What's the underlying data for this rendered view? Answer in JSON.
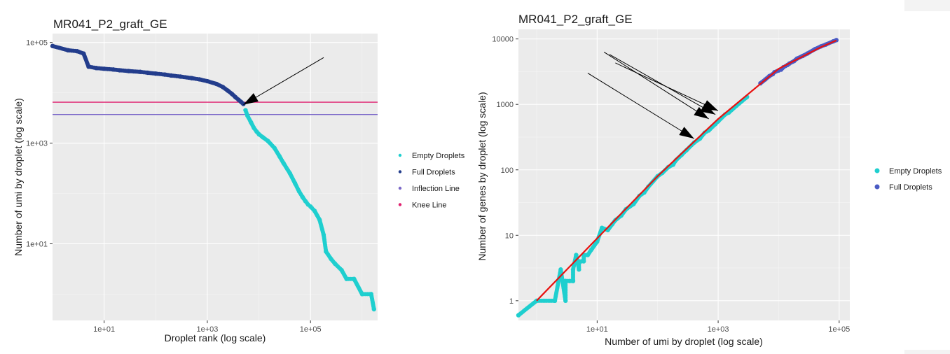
{
  "chart_data": [
    {
      "type": "scatter",
      "title": "MR041_P2_graft_GE",
      "xlabel": "Droplet rank (log scale)",
      "ylabel": "Number of umi by droplet (log scale)",
      "x_scale": "log10",
      "y_scale": "log10",
      "xlim": [
        1,
        2000000
      ],
      "ylim": [
        0.3,
        150000
      ],
      "x_ticks": [
        {
          "value": 10,
          "label": "1e+01"
        },
        {
          "value": 1000,
          "label": "1e+03"
        },
        {
          "value": 100000,
          "label": "1e+05"
        }
      ],
      "y_ticks": [
        {
          "value": 10,
          "label": "1e+01"
        },
        {
          "value": 1000,
          "label": "1e+03"
        },
        {
          "value": 100000,
          "label": "1e+05"
        }
      ],
      "grid": true,
      "legend_position": "right",
      "legend": [
        {
          "label": "Empty Droplets",
          "color": "#1fcfcf"
        },
        {
          "label": "Full Droplets",
          "color": "#233d8c"
        },
        {
          "label": "Inflection Line",
          "color": "#7b68c8"
        },
        {
          "label": "Knee Line",
          "color": "#e0206f"
        }
      ],
      "hlines": [
        {
          "name": "Knee Line",
          "y": 6500,
          "color": "#e0206f"
        },
        {
          "name": "Inflection Line",
          "y": 3700,
          "color": "#7b68c8"
        }
      ],
      "arrows": [
        {
          "from": [
            180000,
            50000
          ],
          "to": [
            5000,
            5800
          ]
        }
      ],
      "series": [
        {
          "name": "Full Droplets",
          "color": "#233d8c",
          "x": [
            1,
            2,
            3,
            4,
            5,
            7,
            10,
            15,
            20,
            30,
            50,
            70,
            100,
            150,
            200,
            300,
            500,
            700,
            1000,
            1500,
            2000,
            2500,
            3000,
            3500,
            4000,
            4500,
            5000
          ],
          "y": [
            85000,
            70000,
            67000,
            60000,
            33000,
            31000,
            30000,
            29000,
            28000,
            27000,
            26000,
            25000,
            24000,
            23000,
            22000,
            21000,
            19500,
            18500,
            17000,
            15000,
            13000,
            11000,
            9500,
            8200,
            7300,
            6600,
            6000
          ]
        },
        {
          "name": "Empty Droplets",
          "color": "#1fcfcf",
          "x": [
            5500,
            6000,
            7000,
            8000,
            9000,
            10000,
            12000,
            15000,
            20000,
            25000,
            30000,
            40000,
            50000,
            60000,
            70000,
            80000,
            90000,
            100000,
            120000,
            150000,
            180000,
            200000,
            250000,
            300000,
            400000,
            500000,
            700000,
            1000000,
            1500000,
            1700000
          ],
          "y": [
            4500,
            3500,
            2600,
            2000,
            1700,
            1500,
            1300,
            1100,
            800,
            550,
            400,
            250,
            160,
            110,
            85,
            70,
            60,
            55,
            45,
            30,
            15,
            7,
            5,
            4,
            3,
            2,
            2,
            1,
            1,
            0.5
          ]
        }
      ]
    },
    {
      "type": "scatter",
      "title": "MR041_P2_graft_GE",
      "xlabel": "Number of umi by droplet (log scale)",
      "ylabel": "Number of genes by droplet (log scale)",
      "x_scale": "log10",
      "y_scale": "log10",
      "xlim": [
        0.5,
        150000
      ],
      "ylim": [
        0.5,
        14000
      ],
      "x_ticks": [
        {
          "value": 10,
          "label": "1e+01"
        },
        {
          "value": 1000,
          "label": "1e+03"
        },
        {
          "value": 100000,
          "label": "1e+05"
        }
      ],
      "y_ticks": [
        {
          "value": 1,
          "label": "1"
        },
        {
          "value": 10,
          "label": "10"
        },
        {
          "value": 100,
          "label": "100"
        },
        {
          "value": 1000,
          "label": "1000"
        },
        {
          "value": 10000,
          "label": "10000"
        }
      ],
      "grid": true,
      "legend_position": "right",
      "legend": [
        {
          "label": "Empty Droplets",
          "color": "#1fcfcf"
        },
        {
          "label": "Full Droplets",
          "color": "#4a5bc4"
        }
      ],
      "fit_line": {
        "color": "#e8110f",
        "x": [
          1,
          10,
          100,
          1000,
          10000,
          50000,
          90000
        ],
        "y": [
          1,
          9,
          80,
          600,
          3500,
          7500,
          9500
        ]
      },
      "arrows": [
        {
          "from": [
            7,
            3000
          ],
          "to": [
            400,
            300
          ]
        },
        {
          "from": [
            13,
            6300
          ],
          "to": [
            700,
            600
          ]
        },
        {
          "from": [
            16,
            5800
          ],
          "to": [
            900,
            700
          ]
        },
        {
          "from": [
            20,
            4300
          ],
          "to": [
            1000,
            800
          ]
        }
      ],
      "series": [
        {
          "name": "Empty Droplets",
          "color": "#1fcfcf",
          "x": [
            0.5,
            1,
            2,
            3,
            3,
            4,
            5,
            5,
            6,
            7,
            8,
            10,
            15,
            20,
            30,
            50,
            70,
            100,
            150,
            200,
            300,
            500,
            700,
            1000,
            1500,
            2000,
            3000,
            2,
            3,
            2.5,
            3.5,
            4,
            4.5,
            6,
            5.5,
            12,
            18,
            25,
            40,
            60,
            120,
            180,
            250,
            400,
            600,
            900,
            1300
          ],
          "y": [
            0.6,
            1,
            1,
            1,
            2,
            2,
            3,
            4,
            4,
            5,
            6,
            8,
            12,
            17,
            25,
            40,
            55,
            80,
            110,
            140,
            200,
            300,
            400,
            550,
            750,
            950,
            1300,
            1,
            2,
            3,
            2,
            3,
            5,
            5,
            4,
            13,
            15,
            20,
            30,
            45,
            90,
            120,
            170,
            260,
            370,
            500,
            700
          ]
        },
        {
          "name": "Full Droplets",
          "color": "#4a5bc4",
          "x": [
            5000,
            6000,
            7000,
            8000,
            10000,
            12000,
            15000,
            20000,
            25000,
            30000,
            40000,
            50000,
            60000,
            80000,
            90000,
            8500,
            11000,
            14000,
            18000
          ],
          "y": [
            2100,
            2400,
            2700,
            2900,
            3300,
            3700,
            4200,
            5000,
            5500,
            6000,
            7000,
            7700,
            8200,
            9200,
            9600,
            3100,
            3400,
            4000,
            4600
          ]
        }
      ]
    }
  ]
}
